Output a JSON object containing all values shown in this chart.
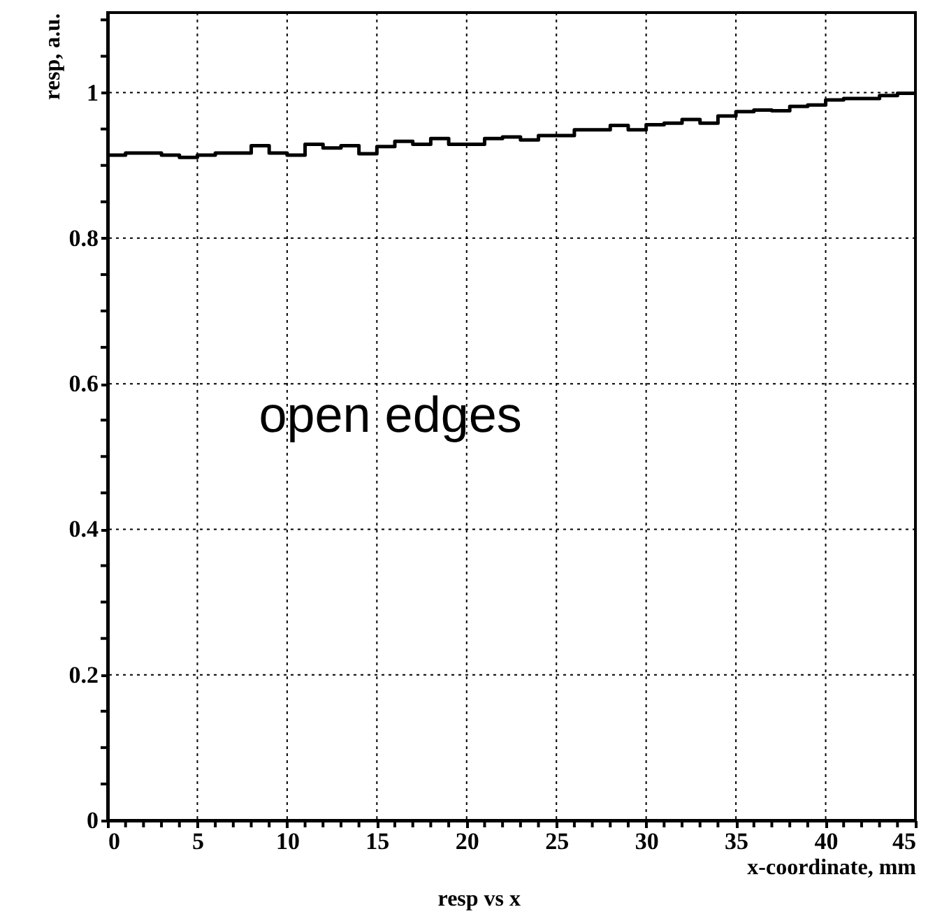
{
  "chart_data": {
    "type": "histogram",
    "title": "resp vs x",
    "xlabel": "x-coordinate, mm",
    "ylabel": "resp, a.u.",
    "bins": [
      0,
      1,
      2,
      3,
      4,
      5,
      6,
      7,
      8,
      9,
      10,
      11,
      12,
      13,
      14,
      15,
      16,
      17,
      18,
      19,
      20,
      21,
      22,
      23,
      24,
      25,
      26,
      27,
      28,
      29,
      30,
      31,
      32,
      33,
      34,
      35,
      36,
      37,
      38,
      39,
      40,
      41,
      42,
      43,
      44,
      45
    ],
    "values": [
      0.914,
      0.917,
      0.917,
      0.914,
      0.911,
      0.914,
      0.917,
      0.917,
      0.927,
      0.917,
      0.914,
      0.929,
      0.924,
      0.927,
      0.916,
      0.926,
      0.933,
      0.929,
      0.937,
      0.929,
      0.929,
      0.937,
      0.939,
      0.935,
      0.941,
      0.941,
      0.949,
      0.949,
      0.955,
      0.949,
      0.956,
      0.958,
      0.963,
      0.958,
      0.968,
      0.974,
      0.976,
      0.975,
      0.981,
      0.983,
      0.99,
      0.992,
      0.992,
      0.996,
      0.999
    ],
    "color": "#000000",
    "xlim": [
      0,
      45
    ],
    "ylim": [
      0,
      1.11
    ],
    "xticks": [
      0,
      {
        "value": 1,
        "label": null
      },
      {
        "value": 2,
        "label": null
      },
      {
        "value": 3,
        "label": null
      },
      {
        "value": 4,
        "label": null
      },
      5,
      {
        "value": 6,
        "label": null
      },
      {
        "value": 7,
        "label": null
      },
      {
        "value": 8,
        "label": null
      },
      {
        "value": 9,
        "label": null
      },
      10,
      {
        "value": 11,
        "label": null
      },
      {
        "value": 12,
        "label": null
      },
      {
        "value": 13,
        "label": null
      },
      {
        "value": 14,
        "label": null
      },
      15,
      {
        "value": 16,
        "label": null
      },
      {
        "value": 17,
        "label": null
      },
      {
        "value": 18,
        "label": null
      },
      {
        "value": 19,
        "label": null
      },
      20,
      {
        "value": 21,
        "label": null
      },
      {
        "value": 22,
        "label": null
      },
      {
        "value": 23,
        "label": null
      },
      {
        "value": 24,
        "label": null
      },
      25,
      {
        "value": 26,
        "label": null
      },
      {
        "value": 27,
        "label": null
      },
      {
        "value": 28,
        "label": null
      },
      {
        "value": 29,
        "label": null
      },
      30,
      {
        "value": 31,
        "label": null
      },
      {
        "value": 32,
        "label": null
      },
      {
        "value": 33,
        "label": null
      },
      {
        "value": 34,
        "label": null
      },
      35,
      {
        "value": 36,
        "label": null
      },
      {
        "value": 37,
        "label": null
      },
      {
        "value": 38,
        "label": null
      },
      {
        "value": 39,
        "label": null
      },
      40,
      {
        "value": 41,
        "label": null
      },
      {
        "value": 42,
        "label": null
      },
      {
        "value": 43,
        "label": null
      },
      {
        "value": 44,
        "label": null
      },
      45
    ],
    "yticks": [
      0,
      {
        "value": 0.05,
        "label": null
      },
      0.2,
      {
        "value": 0.1,
        "label": null
      },
      {
        "value": 0.15,
        "label": null
      },
      {
        "value": 0.25,
        "label": null
      },
      {
        "value": 0.3,
        "label": null
      },
      {
        "value": 0.35,
        "label": null
      },
      0.4,
      {
        "value": 0.45,
        "label": null
      },
      {
        "value": 0.5,
        "label": null
      },
      {
        "value": 0.55,
        "label": null
      },
      0.6,
      {
        "value": 0.65,
        "label": null
      },
      {
        "value": 0.7,
        "label": null
      },
      {
        "value": 0.75,
        "label": null
      },
      0.8,
      {
        "value": 0.85,
        "label": null
      },
      {
        "value": 0.9,
        "label": null
      },
      {
        "value": 0.95,
        "label": null
      },
      1,
      {
        "value": 1.05,
        "label": null
      },
      {
        "value": 1.1,
        "label": null
      }
    ],
    "grid": true,
    "annotations": [
      "open edges"
    ]
  }
}
